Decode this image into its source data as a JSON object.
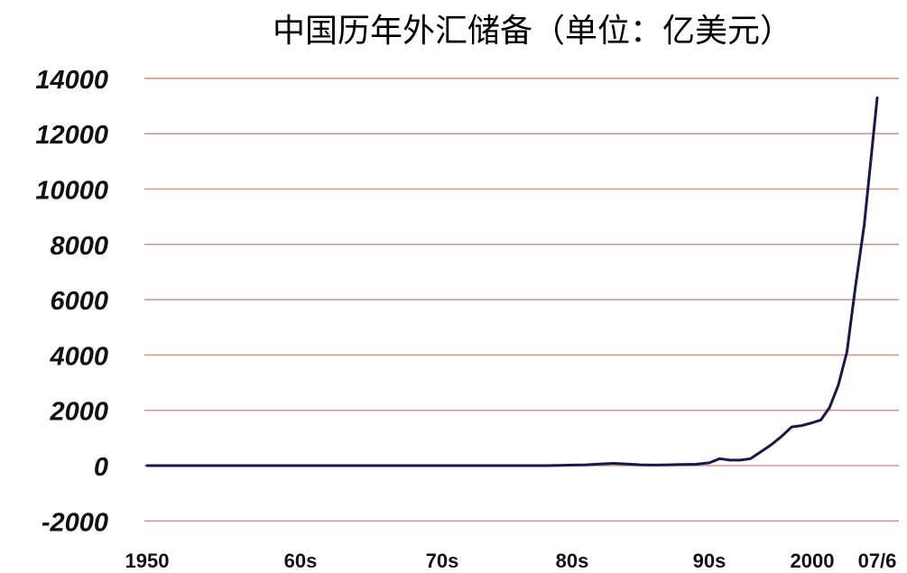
{
  "chart_data": {
    "type": "line",
    "title": "中国历年外汇储备（单位：亿美元）",
    "xlabel": "",
    "ylabel": "",
    "ylim": [
      -2000,
      14000
    ],
    "yticks": [
      -2000,
      0,
      2000,
      4000,
      6000,
      8000,
      10000,
      12000,
      14000
    ],
    "xticks": [
      {
        "label": "1950",
        "year": 1950
      },
      {
        "label": "60s",
        "year": 1960
      },
      {
        "label": "70s",
        "year": 1970
      },
      {
        "label": "80s",
        "year": 1980
      },
      {
        "label": "90s",
        "year": 1990
      },
      {
        "label": "2000",
        "year": 2000
      },
      {
        "label": "07/6",
        "year": 2007.5
      }
    ],
    "grid": true,
    "series": [
      {
        "color": "#161a4a",
        "x": [
          1950,
          1955,
          1960,
          1965,
          1970,
          1975,
          1978,
          1979,
          1980,
          1981,
          1982,
          1983,
          1984,
          1985,
          1986,
          1987,
          1988,
          1989,
          1990,
          1991,
          1992,
          1993,
          1994,
          1995,
          1996,
          1997,
          1998,
          1999,
          2000,
          2001,
          2002,
          2003,
          2004,
          2005,
          2006,
          2007.5
        ],
        "y": [
          0,
          0,
          0,
          0,
          0,
          0,
          0,
          10,
          20,
          30,
          60,
          80,
          60,
          30,
          20,
          30,
          40,
          50,
          100,
          250,
          200,
          200,
          250,
          500,
          750,
          1050,
          1400,
          1450,
          1550,
          1650,
          2100,
          2900,
          4100,
          6500,
          8700,
          13300
        ]
      }
    ]
  }
}
